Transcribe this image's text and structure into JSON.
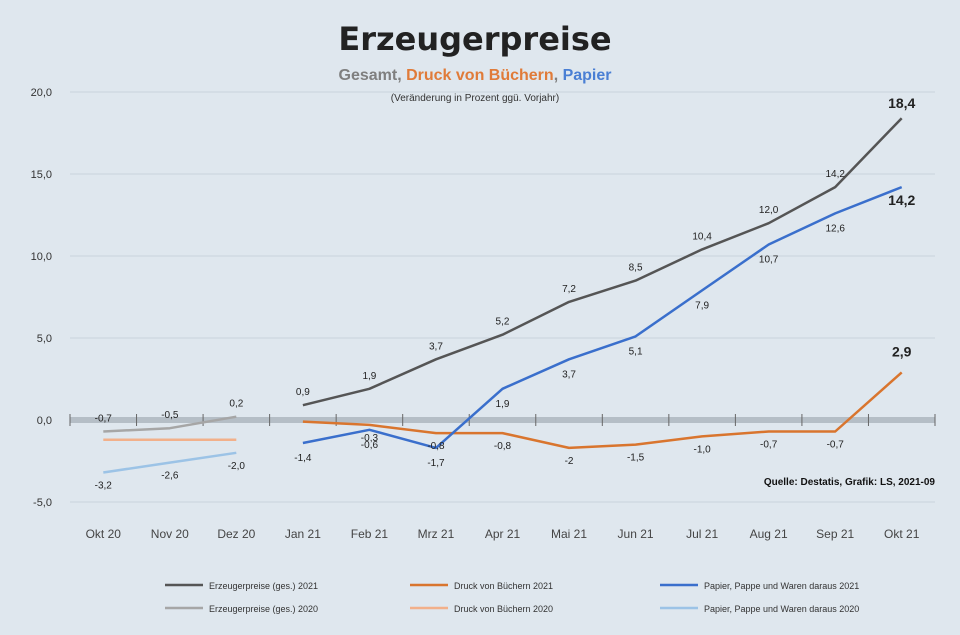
{
  "chart_data": {
    "type": "line",
    "title": "Erzeugerpreise",
    "subtitle_parts": [
      {
        "text": "Gesamt, ",
        "color": "#7f7f7f"
      },
      {
        "text": "Druck von Büchern",
        "color": "#e07b39"
      },
      {
        "text": ", ",
        "color": "#7f7f7f"
      },
      {
        "text": "Papier",
        "color": "#4a7fd4"
      }
    ],
    "subtitle_note": "(Veränderung in Prozent ggü. Vorjahr)",
    "source": "Quelle: Destatis, Grafik: LS, 2021-09",
    "categories": [
      "Okt 20",
      "Nov 20",
      "Dez 20",
      "Jan 21",
      "Feb 21",
      "Mrz 21",
      "Apr 21",
      "Mai 21",
      "Jun 21",
      "Jul 21",
      "Aug 21",
      "Sep 21",
      "Okt 21"
    ],
    "y_tick_labels": [
      "20,0",
      "15,0",
      "10,0",
      "5,0",
      "0,0",
      "-5,0"
    ],
    "ylim": [
      -5,
      20
    ],
    "grid": true,
    "legend_position": "bottom",
    "series": [
      {
        "name": "Erzeugerpreise (ges.) 2021",
        "color": "#555555",
        "values": [
          null,
          null,
          null,
          0.9,
          1.9,
          3.7,
          5.2,
          7.2,
          8.5,
          10.4,
          12.0,
          14.2,
          18.4
        ],
        "labels": [
          "",
          "",
          "",
          "0,9",
          "1,9",
          "3,7",
          "5,2",
          "7,2",
          "8,5",
          "10,4",
          "12,0",
          "14,2",
          "18,4"
        ]
      },
      {
        "name": "Erzeugerpreise (ges.) 2020",
        "color": "#a6a6a6",
        "values": [
          -0.7,
          -0.5,
          0.2,
          null,
          null,
          null,
          null,
          null,
          null,
          null,
          null,
          null,
          null
        ],
        "labels": [
          "-0,7",
          "-0,5",
          "0,2",
          "",
          "",
          "",
          "",
          "",
          "",
          "",
          "",
          "",
          ""
        ]
      },
      {
        "name": "Druck von Büchern 2021",
        "color": "#d9752e",
        "values": [
          null,
          null,
          null,
          -0.1,
          -0.3,
          -0.8,
          -0.8,
          -1.7,
          -1.5,
          -1.0,
          -0.7,
          -0.7,
          2.9
        ],
        "labels": [
          "",
          "",
          "",
          "",
          "-0,3",
          "-0,8",
          "-0,8",
          "-2",
          "-1,5",
          "-1,0",
          "-0,7",
          "-0,7",
          "2,9"
        ]
      },
      {
        "name": "Druck von Büchern 2020",
        "color": "#f2b08a",
        "values": [
          -1.2,
          -1.2,
          -1.2,
          null,
          null,
          null,
          null,
          null,
          null,
          null,
          null,
          null,
          null
        ],
        "labels": [
          "",
          "",
          "",
          "",
          "",
          "",
          "",
          "",
          "",
          "",
          "",
          "",
          ""
        ]
      },
      {
        "name": "Papier, Pappe und Waren daraus 2021",
        "color": "#3a6fcc",
        "values": [
          null,
          null,
          null,
          -1.4,
          -0.6,
          -1.7,
          1.9,
          3.7,
          5.1,
          7.9,
          10.7,
          12.6,
          14.2
        ],
        "labels": [
          "",
          "",
          "",
          "-1,4",
          "-0,6",
          "-1,7",
          "1,9",
          "3,7",
          "5,1",
          "7,9",
          "10,7",
          "12,6",
          "14,2"
        ]
      },
      {
        "name": "Papier, Pappe und Waren daraus 2020",
        "color": "#9cc3e6",
        "values": [
          -3.2,
          -2.6,
          -2.0,
          null,
          null,
          null,
          null,
          null,
          null,
          null,
          null,
          null,
          null
        ],
        "labels": [
          "-3,2",
          "-2,6",
          "-2,0",
          "",
          "",
          "",
          "",
          "",
          "",
          "",
          "",
          "",
          ""
        ]
      }
    ]
  }
}
